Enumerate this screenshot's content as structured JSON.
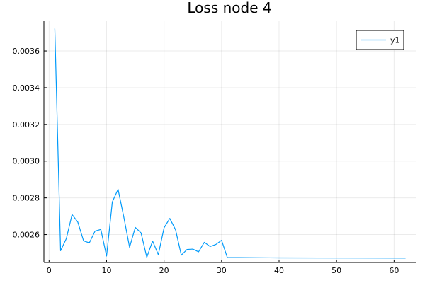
{
  "chart_data": {
    "type": "line",
    "title": "Loss node 4",
    "xlabel": "",
    "ylabel": "",
    "xlim": [
      -0.9,
      63.9
    ],
    "ylim": [
      0.002448,
      0.003762
    ],
    "x_ticks": [
      0,
      10,
      20,
      30,
      40,
      50,
      60
    ],
    "x_tick_labels": [
      "0",
      "10",
      "20",
      "30",
      "40",
      "50",
      "60"
    ],
    "y_ticks": [
      0.0026,
      0.0028,
      0.003,
      0.0032,
      0.0034,
      0.0036
    ],
    "y_tick_labels": [
      "0.0026",
      "0.0028",
      "0.0030",
      "0.0032",
      "0.0034",
      "0.0036"
    ],
    "grid": true,
    "legend_position": "top-right",
    "series": [
      {
        "name": "y1",
        "color": "#009AFA",
        "x": [
          1,
          2,
          3,
          4,
          5,
          6,
          7,
          8,
          9,
          10,
          11,
          12,
          13,
          14,
          15,
          16,
          17,
          18,
          19,
          20,
          21,
          22,
          23,
          24,
          25,
          26,
          27,
          28,
          29,
          30,
          31,
          40,
          62
        ],
        "y": [
          0.003722,
          0.002512,
          0.002578,
          0.002709,
          0.002668,
          0.002566,
          0.002555,
          0.002619,
          0.002628,
          0.002483,
          0.002778,
          0.002847,
          0.002695,
          0.002531,
          0.002639,
          0.002609,
          0.002476,
          0.002565,
          0.002491,
          0.002637,
          0.002688,
          0.002626,
          0.002488,
          0.002519,
          0.002521,
          0.002506,
          0.002558,
          0.002535,
          0.002546,
          0.002569,
          0.002475,
          0.002473,
          0.002472
        ]
      }
    ]
  }
}
